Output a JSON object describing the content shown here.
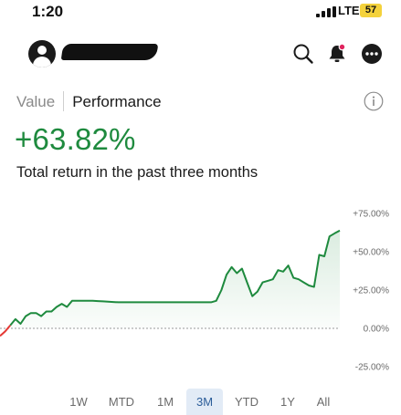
{
  "status": {
    "time": "1:20",
    "network": "LTE",
    "battery": "57"
  },
  "header": {
    "avatar_icon": "user-icon",
    "username_redacted": true,
    "icons": [
      "search-icon",
      "bell-icon",
      "more-icon"
    ],
    "notification_dot_color": "#e0245e"
  },
  "toggle": {
    "value_label": "Value",
    "performance_label": "Performance",
    "active": "Performance"
  },
  "summary": {
    "return_value": "+63.82%",
    "caption": "Total return in the past three months",
    "positive_color": "#1e8a3e"
  },
  "chart_data": {
    "type": "line",
    "y_tick_labels": [
      "+75.00%",
      "+50.00%",
      "+25.00%",
      "0.00%",
      "-25.00%"
    ],
    "ylim": [
      -25,
      75
    ],
    "baseline": 0,
    "line_color": "#1e8a3e",
    "negative_color": "#e53935",
    "series": [
      {
        "values": [
          -5,
          -2,
          2,
          6,
          3,
          8,
          10,
          10,
          8,
          11,
          11,
          14,
          16,
          14,
          18,
          18,
          18,
          18,
          18,
          17.8,
          17.6,
          17.4,
          17.2,
          17,
          17,
          17,
          17,
          17,
          17,
          17,
          17,
          17,
          17,
          17,
          17,
          17,
          17,
          17,
          17,
          17,
          17,
          17,
          18,
          25,
          35,
          40,
          36,
          39,
          30,
          21,
          24,
          30,
          31,
          32,
          38,
          37,
          41,
          33,
          32,
          30,
          28,
          27,
          48,
          47,
          60,
          62,
          63.82
        ]
      }
    ]
  },
  "range_tabs": {
    "items": [
      "1W",
      "MTD",
      "1M",
      "3M",
      "YTD",
      "1Y",
      "All"
    ],
    "active": "3M"
  }
}
